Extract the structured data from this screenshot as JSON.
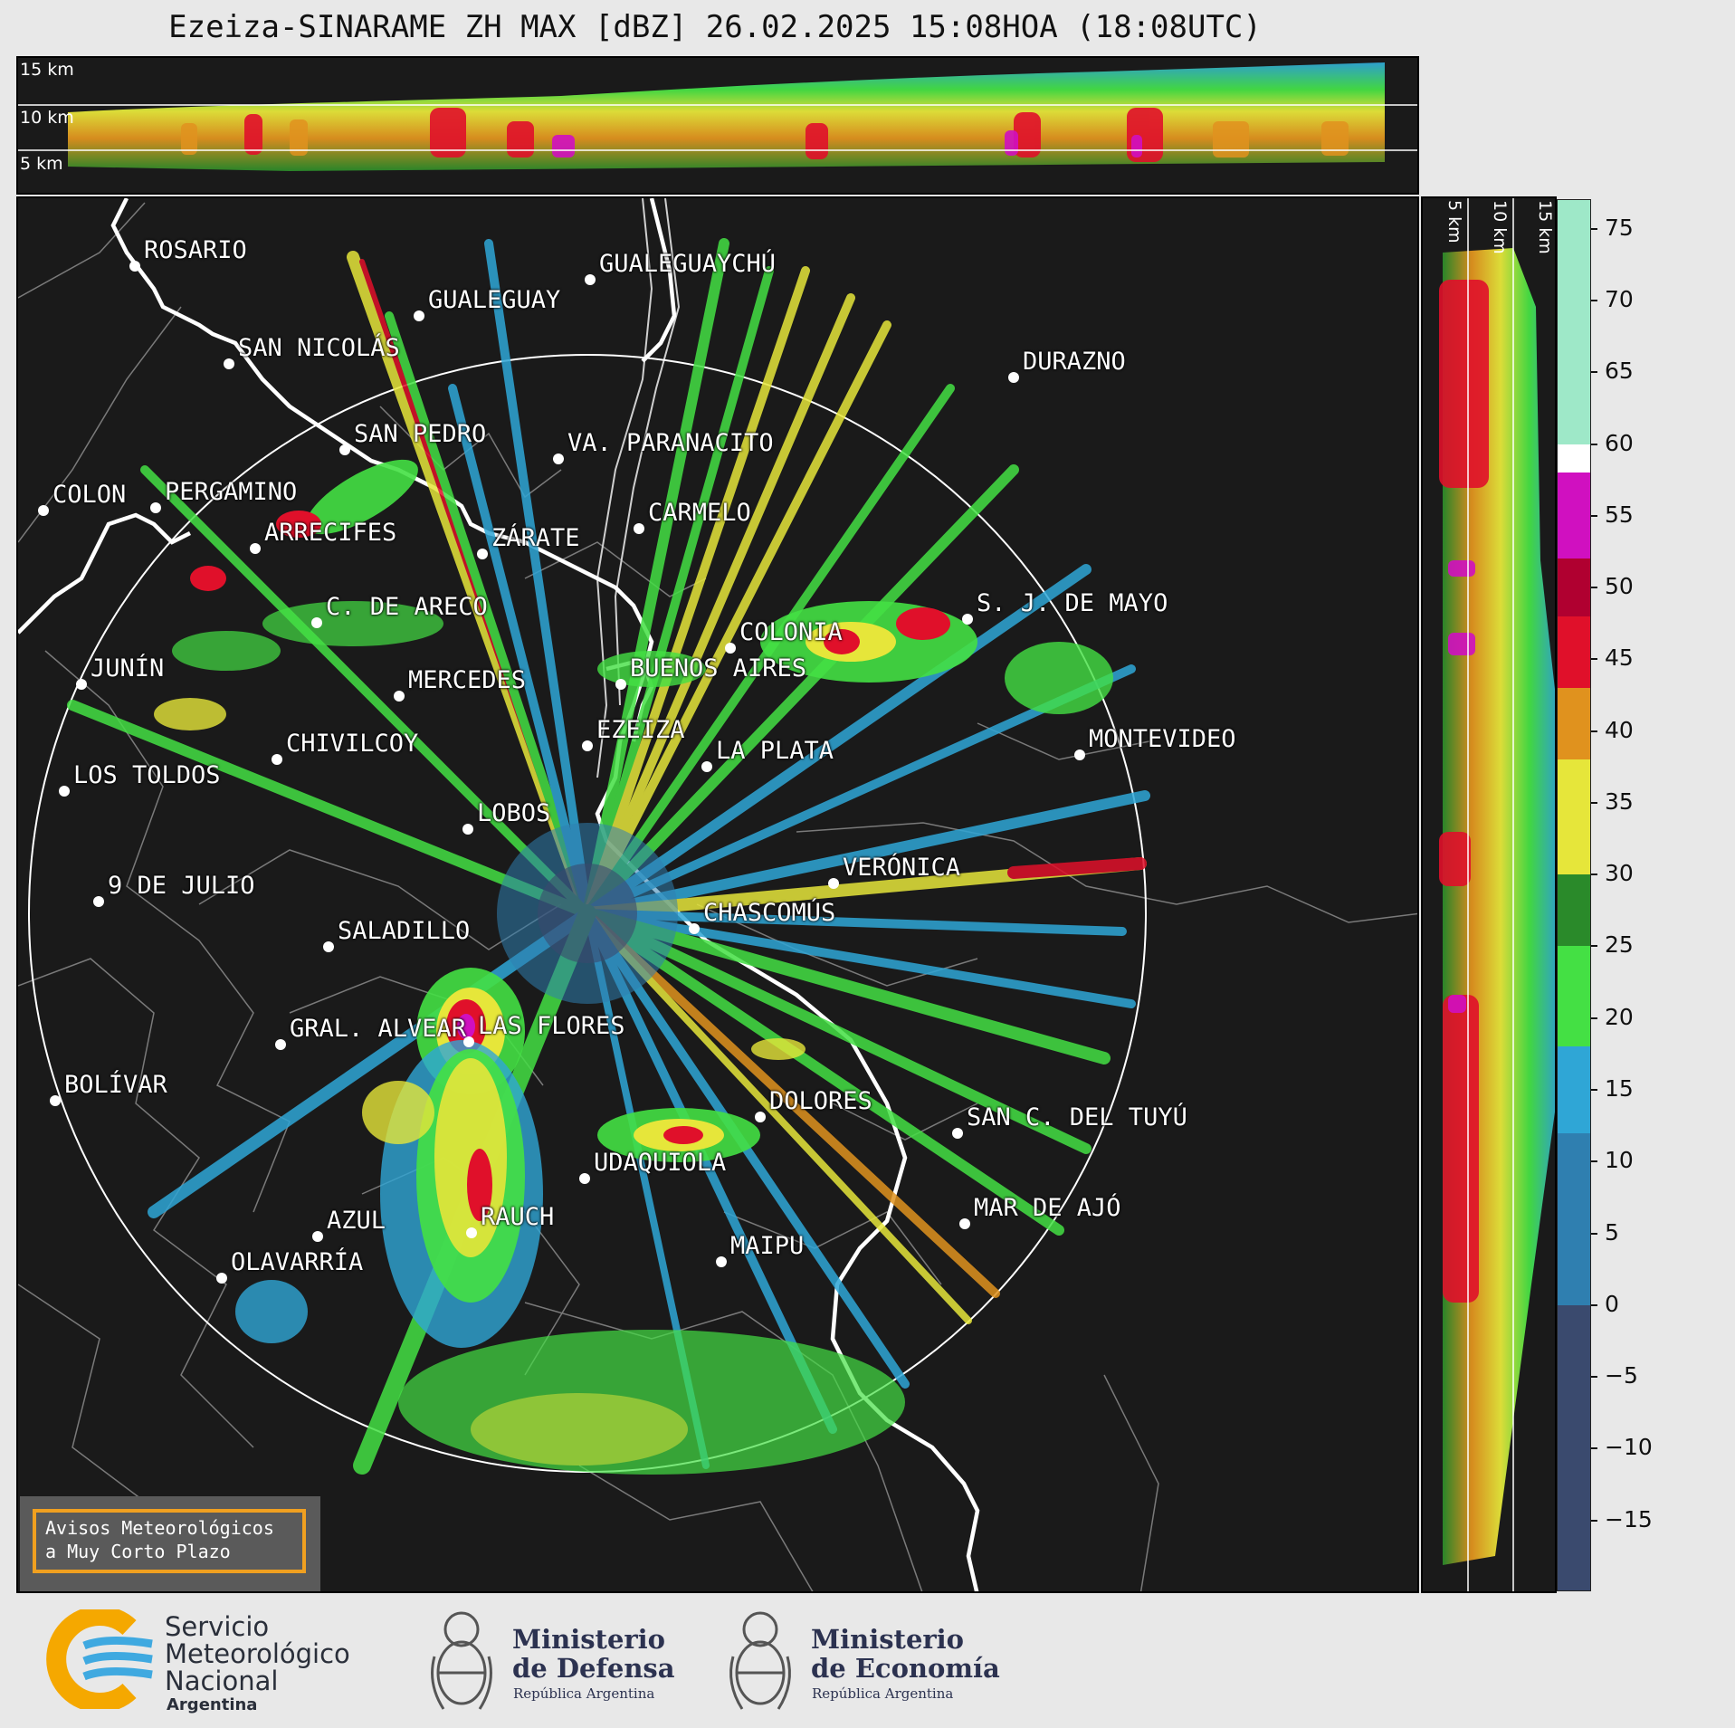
{
  "title": "Ezeiza-SINARAME ZH MAX [dBZ] 26.02.2025 15:08HOA (18:08UTC)",
  "altitude_labels": {
    "top": [
      "15 km",
      "10 km",
      "5 km"
    ],
    "side": [
      "5 km",
      "10 km",
      "15 km"
    ]
  },
  "colorbar": {
    "ticks": [
      "75",
      "70",
      "65",
      "60",
      "55",
      "50",
      "45",
      "40",
      "35",
      "30",
      "25",
      "20",
      "15",
      "10",
      "5",
      "0",
      "−5",
      "−10",
      "−15"
    ],
    "range": [
      -20,
      77
    ],
    "colors": [
      {
        "from": -20,
        "to": 0,
        "color": "#3a4a6e"
      },
      {
        "from": 0,
        "to": 12,
        "color": "#2f7fb0"
      },
      {
        "from": 12,
        "to": 18,
        "color": "#2fa6d6"
      },
      {
        "from": 18,
        "to": 25,
        "color": "#44e044"
      },
      {
        "from": 25,
        "to": 30,
        "color": "#2a8a2a"
      },
      {
        "from": 30,
        "to": 38,
        "color": "#e6e63a"
      },
      {
        "from": 38,
        "to": 43,
        "color": "#e0921e"
      },
      {
        "from": 43,
        "to": 48,
        "color": "#e0102a"
      },
      {
        "from": 48,
        "to": 52,
        "color": "#b00030"
      },
      {
        "from": 52,
        "to": 58,
        "color": "#d010c0"
      },
      {
        "from": 58,
        "to": 60,
        "color": "#ffffff"
      },
      {
        "from": 60,
        "to": 77,
        "color": "#9ee8c8"
      }
    ]
  },
  "cities": [
    {
      "name": "ROSARIO"
    },
    {
      "name": "GUALEGUAYCHÚ"
    },
    {
      "name": "GUALEGUAY"
    },
    {
      "name": "SAN NICOLÁS"
    },
    {
      "name": "DURAZNO"
    },
    {
      "name": "SAN PEDRO"
    },
    {
      "name": "VA. PARANACITO"
    },
    {
      "name": "COLON"
    },
    {
      "name": "PERGAMINO"
    },
    {
      "name": "CARMELO"
    },
    {
      "name": "ARRECIFES"
    },
    {
      "name": "ZÁRATE"
    },
    {
      "name": "C. DE ARECO"
    },
    {
      "name": "S. J. DE MAYO"
    },
    {
      "name": "COLONIA"
    },
    {
      "name": "JUNÍN"
    },
    {
      "name": "BUENOS AIRES"
    },
    {
      "name": "MERCEDES"
    },
    {
      "name": "EZEIZA"
    },
    {
      "name": "MONTEVIDEO"
    },
    {
      "name": "CHIVILCOY"
    },
    {
      "name": "LA PLATA"
    },
    {
      "name": "LOS TOLDOS"
    },
    {
      "name": "LOBOS"
    },
    {
      "name": "VERÓNICA"
    },
    {
      "name": "9 DE JULIO"
    },
    {
      "name": "CHASCOMÚS"
    },
    {
      "name": "SALADILLO"
    },
    {
      "name": "GRAL. ALVEAR"
    },
    {
      "name": "LAS FLORES"
    },
    {
      "name": "BOLÍVAR"
    },
    {
      "name": "DOLORES"
    },
    {
      "name": "SAN C. DEL TUYÚ"
    },
    {
      "name": "UDAQUIOLA"
    },
    {
      "name": "MAR DE AJÓ"
    },
    {
      "name": "AZUL"
    },
    {
      "name": "RAUCH"
    },
    {
      "name": "OLAVARRÍA"
    },
    {
      "name": "MAIPU"
    }
  ],
  "warning_box": {
    "line1": "Avisos Meteorológicos",
    "line2": "a Muy Corto Plazo"
  },
  "logos": {
    "smn": {
      "line1": "Servicio",
      "line2": "Meteorológico",
      "line3": "Nacional",
      "line4": "Argentina"
    },
    "defensa": {
      "line1": "Ministerio",
      "line2": "de Defensa",
      "line3": "República Argentina"
    },
    "economia": {
      "line1": "Ministerio",
      "line2": "de Economía",
      "line3": "República Argentina"
    }
  }
}
